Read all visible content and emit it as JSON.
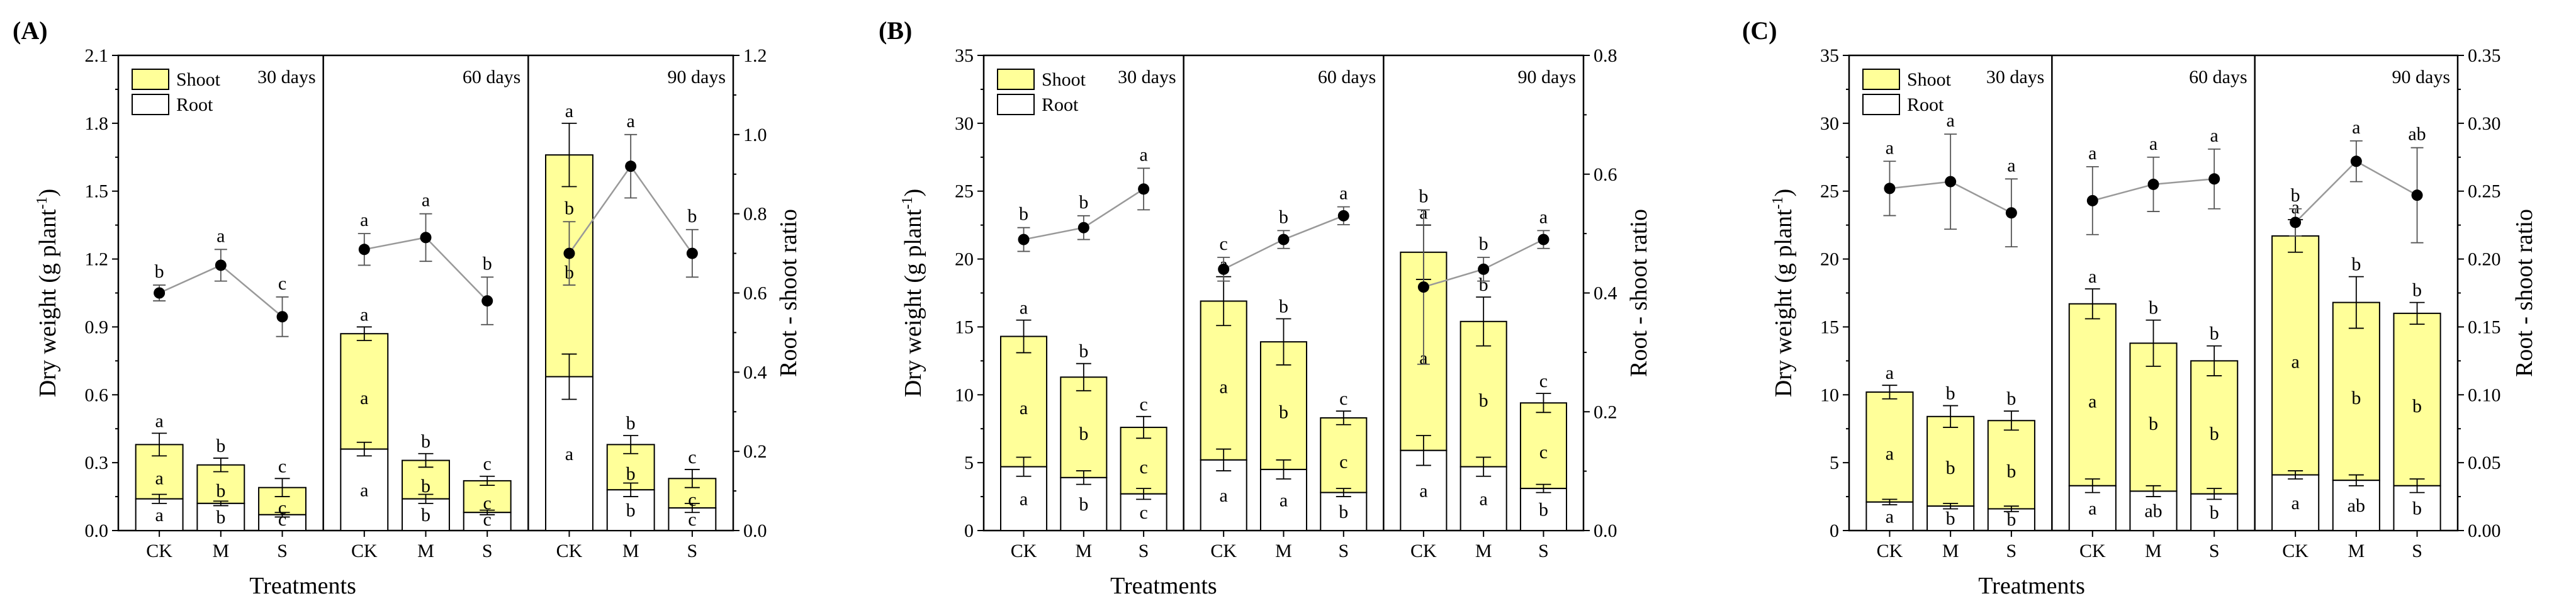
{
  "figure": {
    "x_title": "Treatments",
    "y_title_left": "Dry weight (g plant",
    "y_title_sup": "-1",
    "y_title_close": ")",
    "y_title_right": "Root - shoot ratio",
    "legend": [
      {
        "label": "Shoot",
        "color": "#ffff99"
      },
      {
        "label": "Root",
        "color": "#ffffff"
      }
    ],
    "colors": {
      "shoot": "#ffff99",
      "root": "#ffffff",
      "line": "#999999",
      "point": "#000000"
    }
  },
  "chart_data": [
    {
      "type": "bar",
      "panel_label": "(A)",
      "periods": [
        "30 days",
        "60 days",
        "90 days"
      ],
      "categories": [
        "CK",
        "M",
        "S"
      ],
      "ylim": [
        0,
        2.1
      ],
      "yticks": [
        "0.0",
        "0.3",
        "0.6",
        "0.9",
        "1.2",
        "1.5",
        "1.8",
        "2.1"
      ],
      "ylim_right": [
        0,
        1.2
      ],
      "yticks_right": [
        "0.0",
        "0.2",
        "0.4",
        "0.6",
        "0.8",
        "1.0",
        "1.2"
      ],
      "groups": [
        {
          "period": "30 days",
          "items": [
            {
              "cat": "CK",
              "root": 0.14,
              "root_err": 0.02,
              "total": 0.38,
              "total_err": 0.05,
              "root_letter": "a",
              "shoot_letter": "a",
              "total_letter": "a",
              "ratio": 0.6,
              "ratio_err": 0.02,
              "ratio_letter": "b"
            },
            {
              "cat": "M",
              "root": 0.12,
              "root_err": 0.01,
              "total": 0.29,
              "total_err": 0.03,
              "root_letter": "b",
              "shoot_letter": "b",
              "total_letter": "b",
              "ratio": 0.67,
              "ratio_err": 0.04,
              "ratio_letter": "a"
            },
            {
              "cat": "S",
              "root": 0.07,
              "root_err": 0.01,
              "total": 0.19,
              "total_err": 0.04,
              "root_letter": "c",
              "shoot_letter": "c",
              "total_letter": "c",
              "ratio": 0.54,
              "ratio_err": 0.05,
              "ratio_letter": "c"
            }
          ]
        },
        {
          "period": "60 days",
          "items": [
            {
              "cat": "CK",
              "root": 0.36,
              "root_err": 0.03,
              "total": 0.87,
              "total_err": 0.03,
              "root_letter": "a",
              "shoot_letter": "a",
              "total_letter": "a",
              "ratio": 0.71,
              "ratio_err": 0.04,
              "ratio_letter": "a"
            },
            {
              "cat": "M",
              "root": 0.14,
              "root_err": 0.02,
              "total": 0.31,
              "total_err": 0.03,
              "root_letter": "b",
              "shoot_letter": "b",
              "total_letter": "b",
              "ratio": 0.74,
              "ratio_err": 0.06,
              "ratio_letter": "a"
            },
            {
              "cat": "S",
              "root": 0.08,
              "root_err": 0.01,
              "total": 0.22,
              "total_err": 0.02,
              "root_letter": "c",
              "shoot_letter": "c",
              "total_letter": "c",
              "ratio": 0.58,
              "ratio_err": 0.06,
              "ratio_letter": "b"
            }
          ]
        },
        {
          "period": "90 days",
          "items": [
            {
              "cat": "CK",
              "root": 0.68,
              "root_err": 0.1,
              "total": 1.66,
              "total_err": 0.14,
              "root_letter": "a",
              "shoot_letter": "b",
              "total_letter": "a",
              "ratio": 0.7,
              "ratio_err": 0.08,
              "ratio_letter": "b"
            },
            {
              "cat": "M",
              "root": 0.18,
              "root_err": 0.03,
              "total": 0.38,
              "total_err": 0.04,
              "root_letter": "b",
              "shoot_letter": "b",
              "total_letter": "b",
              "ratio": 0.92,
              "ratio_err": 0.08,
              "ratio_letter": "a"
            },
            {
              "cat": "S",
              "root": 0.1,
              "root_err": 0.02,
              "total": 0.23,
              "total_err": 0.04,
              "root_letter": "c",
              "shoot_letter": "c",
              "total_letter": "c",
              "ratio": 0.7,
              "ratio_err": 0.06,
              "ratio_letter": "b"
            }
          ]
        }
      ]
    },
    {
      "type": "bar",
      "panel_label": "(B)",
      "periods": [
        "30 days",
        "60 days",
        "90 days"
      ],
      "categories": [
        "CK",
        "M",
        "S"
      ],
      "ylim": [
        0,
        35
      ],
      "yticks": [
        "0",
        "5",
        "10",
        "15",
        "20",
        "25",
        "30",
        "35"
      ],
      "ylim_right": [
        0,
        0.8
      ],
      "yticks_right": [
        "0.0",
        "0.2",
        "0.4",
        "0.6",
        "0.8"
      ],
      "groups": [
        {
          "period": "30 days",
          "items": [
            {
              "cat": "CK",
              "root": 4.7,
              "root_err": 0.7,
              "total": 14.3,
              "total_err": 1.2,
              "root_letter": "a",
              "shoot_letter": "a",
              "total_letter": "a",
              "ratio": 0.49,
              "ratio_err": 0.02,
              "ratio_letter": "b"
            },
            {
              "cat": "M",
              "root": 3.9,
              "root_err": 0.5,
              "total": 11.3,
              "total_err": 1.0,
              "root_letter": "b",
              "shoot_letter": "b",
              "total_letter": "b",
              "ratio": 0.51,
              "ratio_err": 0.02,
              "ratio_letter": "b"
            },
            {
              "cat": "S",
              "root": 2.7,
              "root_err": 0.4,
              "total": 7.6,
              "total_err": 0.8,
              "root_letter": "c",
              "shoot_letter": "c",
              "total_letter": "c",
              "ratio": 0.575,
              "ratio_err": 0.035,
              "ratio_letter": "a"
            }
          ]
        },
        {
          "period": "60 days",
          "items": [
            {
              "cat": "CK",
              "root": 5.2,
              "root_err": 0.8,
              "total": 16.9,
              "total_err": 1.8,
              "root_letter": "a",
              "shoot_letter": "a",
              "total_letter": "a",
              "ratio": 0.44,
              "ratio_err": 0.02,
              "ratio_letter": "c"
            },
            {
              "cat": "M",
              "root": 4.5,
              "root_err": 0.7,
              "total": 13.9,
              "total_err": 1.7,
              "root_letter": "a",
              "shoot_letter": "b",
              "total_letter": "b",
              "ratio": 0.49,
              "ratio_err": 0.015,
              "ratio_letter": "b"
            },
            {
              "cat": "S",
              "root": 2.8,
              "root_err": 0.3,
              "total": 8.3,
              "total_err": 0.5,
              "root_letter": "b",
              "shoot_letter": "c",
              "total_letter": "c",
              "ratio": 0.53,
              "ratio_err": 0.015,
              "ratio_letter": "a"
            }
          ]
        },
        {
          "period": "90 days",
          "items": [
            {
              "cat": "CK",
              "root": 5.9,
              "root_err": 1.1,
              "total": 20.5,
              "total_err": 2.0,
              "root_letter": "a",
              "shoot_letter": "a",
              "total_letter": "a",
              "ratio": 0.41,
              "ratio_err": 0.13,
              "ratio_letter": "b"
            },
            {
              "cat": "M",
              "root": 4.7,
              "root_err": 0.7,
              "total": 15.4,
              "total_err": 1.8,
              "root_letter": "a",
              "shoot_letter": "b",
              "total_letter": "b",
              "ratio": 0.44,
              "ratio_err": 0.02,
              "ratio_letter": "b"
            },
            {
              "cat": "S",
              "root": 3.1,
              "root_err": 0.3,
              "total": 9.4,
              "total_err": 0.7,
              "root_letter": "b",
              "shoot_letter": "c",
              "total_letter": "c",
              "ratio": 0.49,
              "ratio_err": 0.015,
              "ratio_letter": "a"
            }
          ]
        }
      ]
    },
    {
      "type": "bar",
      "panel_label": "(C)",
      "periods": [
        "30 days",
        "60 days",
        "90 days"
      ],
      "categories": [
        "CK",
        "M",
        "S"
      ],
      "ylim": [
        0,
        35
      ],
      "yticks": [
        "0",
        "5",
        "10",
        "15",
        "20",
        "25",
        "30",
        "35"
      ],
      "ylim_right": [
        0,
        0.35
      ],
      "yticks_right": [
        "0.00",
        "0.05",
        "0.10",
        "0.15",
        "0.20",
        "0.25",
        "0.30",
        "0.35"
      ],
      "groups": [
        {
          "period": "30 days",
          "items": [
            {
              "cat": "CK",
              "root": 2.1,
              "root_err": 0.2,
              "total": 10.2,
              "total_err": 0.5,
              "root_letter": "a",
              "shoot_letter": "a",
              "total_letter": "a",
              "ratio": 0.252,
              "ratio_err": 0.02,
              "ratio_letter": "a"
            },
            {
              "cat": "M",
              "root": 1.8,
              "root_err": 0.2,
              "total": 8.4,
              "total_err": 0.8,
              "root_letter": "b",
              "shoot_letter": "b",
              "total_letter": "b",
              "ratio": 0.257,
              "ratio_err": 0.035,
              "ratio_letter": "a"
            },
            {
              "cat": "S",
              "root": 1.6,
              "root_err": 0.2,
              "total": 8.1,
              "total_err": 0.7,
              "root_letter": "b",
              "shoot_letter": "b",
              "total_letter": "b",
              "ratio": 0.234,
              "ratio_err": 0.025,
              "ratio_letter": "a"
            }
          ]
        },
        {
          "period": "60 days",
          "items": [
            {
              "cat": "CK",
              "root": 3.3,
              "root_err": 0.5,
              "total": 16.7,
              "total_err": 1.1,
              "root_letter": "a",
              "shoot_letter": "a",
              "total_letter": "a",
              "ratio": 0.243,
              "ratio_err": 0.025,
              "ratio_letter": "a"
            },
            {
              "cat": "M",
              "root": 2.9,
              "root_err": 0.4,
              "total": 13.8,
              "total_err": 1.7,
              "root_letter": "ab",
              "shoot_letter": "b",
              "total_letter": "b",
              "ratio": 0.255,
              "ratio_err": 0.02,
              "ratio_letter": "a"
            },
            {
              "cat": "S",
              "root": 2.7,
              "root_err": 0.4,
              "total": 12.5,
              "total_err": 1.1,
              "root_letter": "b",
              "shoot_letter": "b",
              "total_letter": "b",
              "ratio": 0.259,
              "ratio_err": 0.022,
              "ratio_letter": "a"
            }
          ]
        },
        {
          "period": "90 days",
          "items": [
            {
              "cat": "CK",
              "root": 4.1,
              "root_err": 0.3,
              "total": 21.7,
              "total_err": 1.2,
              "root_letter": "a",
              "shoot_letter": "a",
              "total_letter": "a",
              "ratio": 0.227,
              "ratio_err": 0.01,
              "ratio_letter": "b"
            },
            {
              "cat": "M",
              "root": 3.7,
              "root_err": 0.4,
              "total": 16.8,
              "total_err": 1.9,
              "root_letter": "ab",
              "shoot_letter": "b",
              "total_letter": "b",
              "ratio": 0.272,
              "ratio_err": 0.015,
              "ratio_letter": "a"
            },
            {
              "cat": "S",
              "root": 3.3,
              "root_err": 0.5,
              "total": 16.0,
              "total_err": 0.8,
              "root_letter": "b",
              "shoot_letter": "b",
              "total_letter": "b",
              "ratio": 0.247,
              "ratio_err": 0.035,
              "ratio_letter": "ab"
            }
          ]
        }
      ]
    }
  ]
}
